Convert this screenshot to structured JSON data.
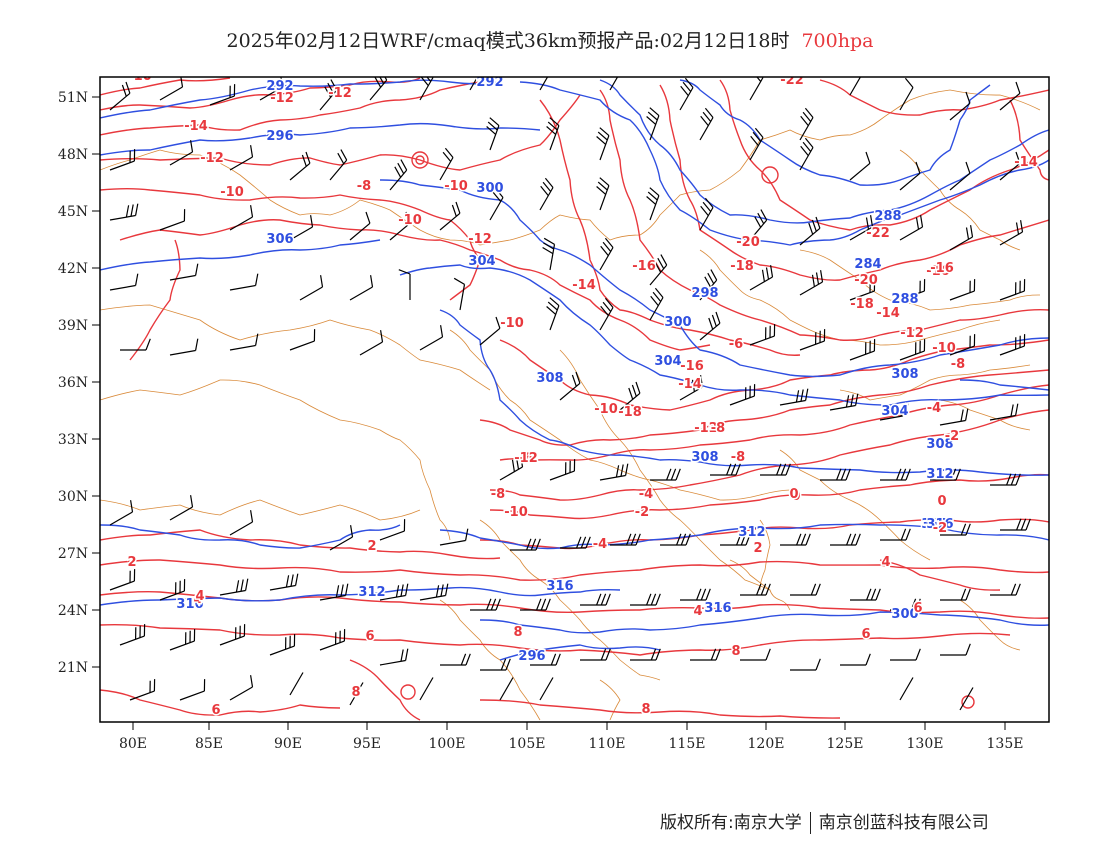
{
  "title": {
    "main": "2025年02月12日WRF/cmaq模式36km预报产品:02月12日18时",
    "level": "700hpa",
    "level_color": "#e8383d"
  },
  "colors": {
    "geopotential": "#2f4fe0",
    "temperature": "#e8383d",
    "borders": "#d98a3a",
    "wind": "#000000"
  },
  "axes": {
    "lon_labels": [
      "80E",
      "85E",
      "90E",
      "95E",
      "100E",
      "105E",
      "110E",
      "115E",
      "120E",
      "125E",
      "130E",
      "135E"
    ],
    "lat_labels": [
      "51N",
      "48N",
      "45N",
      "42N",
      "39N",
      "36N",
      "33N",
      "30N",
      "27N",
      "24N",
      "21N"
    ]
  },
  "contour_labels": {
    "geopotential": [
      "292",
      "292",
      "296",
      "300",
      "306",
      "304",
      "298",
      "300",
      "304",
      "308",
      "308",
      "312",
      "312",
      "312",
      "316",
      "316",
      "316",
      "300",
      "296",
      "304",
      "308",
      "308",
      "312",
      "316",
      "288",
      "284",
      "288"
    ],
    "temperature": [
      "-10",
      "-12",
      "-14",
      "-12",
      "-10",
      "-8",
      "-10",
      "-10",
      "-12",
      "-10",
      "-12",
      "-14",
      "-16",
      "-18",
      "-20",
      "-22",
      "-22",
      "-20",
      "-18",
      "-16",
      "-14",
      "-12",
      "-10",
      "-8",
      "-6",
      "-4",
      "-2",
      "-2",
      "0",
      "0",
      "-4",
      "-2",
      "-6",
      "-8",
      "-10",
      "-12",
      "-14",
      "-16",
      "-18",
      "-12",
      "-8",
      "-10",
      "-8",
      "-6",
      "-4",
      "2",
      "4",
      "6",
      "8",
      "6",
      "4",
      "2",
      "4",
      "6",
      "8",
      "8",
      "8",
      "6",
      "4",
      "0",
      "2",
      "-14",
      "-16"
    ]
  },
  "credit": {
    "left": "版权所有:南京大学",
    "right": "南京创蓝科技有限公司"
  }
}
